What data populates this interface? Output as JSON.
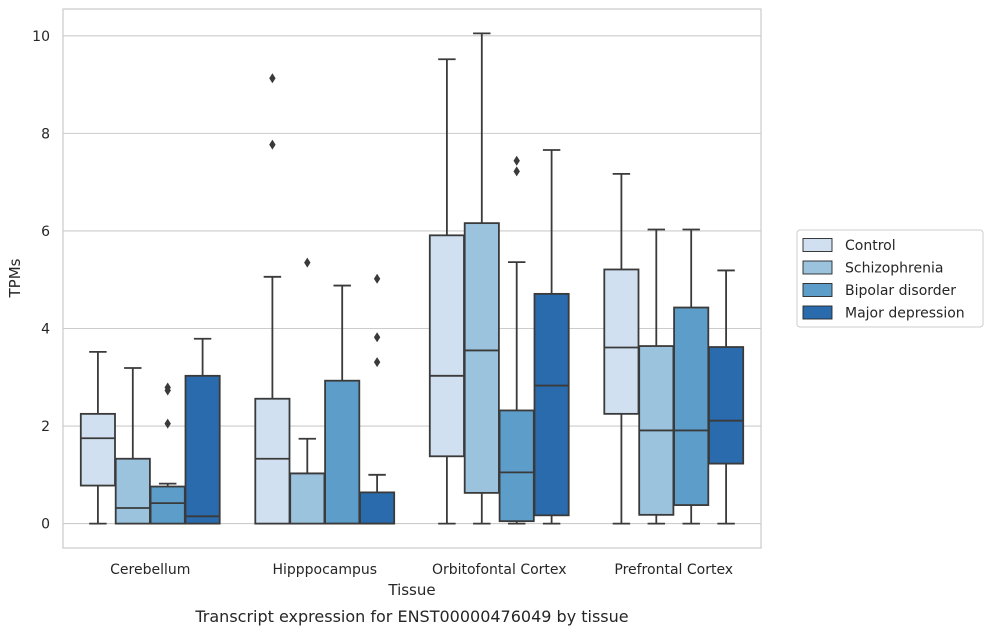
{
  "chart_data": {
    "type": "boxplot",
    "caption": "Transcript expression for ENST00000476049 by tissue",
    "xlabel": "Tissue",
    "ylabel": "TPMs",
    "ylim": [
      -0.5,
      10.55
    ],
    "yticks": [
      0,
      2,
      4,
      6,
      8,
      10
    ],
    "grid": "horizontal",
    "legend_position": "right",
    "categories": [
      "Cerebellum",
      "Hipppocampus",
      "Orbitofontal Cortex",
      "Prefrontal Cortex"
    ],
    "series": [
      {
        "name": "Control",
        "color": "#d0e0f0",
        "boxes": [
          {
            "whisker_low": 0.0,
            "q1": 0.78,
            "median": 1.75,
            "q3": 2.25,
            "whisker_high": 3.52,
            "outliers": []
          },
          {
            "whisker_low": 0.0,
            "q1": 0.0,
            "median": 1.33,
            "q3": 2.56,
            "whisker_high": 5.06,
            "outliers": [
              7.77,
              9.13
            ]
          },
          {
            "whisker_low": 0.0,
            "q1": 1.38,
            "median": 3.03,
            "q3": 5.91,
            "whisker_high": 9.52,
            "outliers": []
          },
          {
            "whisker_low": 0.0,
            "q1": 2.25,
            "median": 3.61,
            "q3": 5.21,
            "whisker_high": 7.17,
            "outliers": []
          }
        ]
      },
      {
        "name": "Schizophrenia",
        "color": "#9cc3de",
        "boxes": [
          {
            "whisker_low": 0.0,
            "q1": 0.0,
            "median": 0.32,
            "q3": 1.33,
            "whisker_high": 3.19,
            "outliers": []
          },
          {
            "whisker_low": 0.0,
            "q1": 0.0,
            "median": 1.03,
            "q3": 1.03,
            "whisker_high": 1.74,
            "outliers": [
              5.35
            ]
          },
          {
            "whisker_low": 0.0,
            "q1": 0.63,
            "median": 3.55,
            "q3": 6.16,
            "whisker_high": 10.05,
            "outliers": []
          },
          {
            "whisker_low": 0.0,
            "q1": 0.18,
            "median": 1.91,
            "q3": 3.64,
            "whisker_high": 6.03,
            "outliers": []
          }
        ]
      },
      {
        "name": "Bipolar disorder",
        "color": "#5c9ec9",
        "boxes": [
          {
            "whisker_low": 0.0,
            "q1": 0.0,
            "median": 0.42,
            "q3": 0.76,
            "whisker_high": 0.82,
            "outliers": [
              2.05,
              2.73,
              2.79
            ]
          },
          {
            "whisker_low": 0.0,
            "q1": 0.0,
            "median": 0.0,
            "q3": 2.93,
            "whisker_high": 4.88,
            "outliers": []
          },
          {
            "whisker_low": 0.0,
            "q1": 0.05,
            "median": 1.05,
            "q3": 2.32,
            "whisker_high": 5.36,
            "outliers": [
              7.22,
              7.44
            ]
          },
          {
            "whisker_low": 0.0,
            "q1": 0.38,
            "median": 1.91,
            "q3": 4.43,
            "whisker_high": 6.03,
            "outliers": []
          }
        ]
      },
      {
        "name": "Major depression",
        "color": "#2a6bad",
        "boxes": [
          {
            "whisker_low": 0.0,
            "q1": 0.0,
            "median": 0.15,
            "q3": 3.03,
            "whisker_high": 3.79,
            "outliers": []
          },
          {
            "whisker_low": 0.0,
            "q1": 0.0,
            "median": 0.0,
            "q3": 0.64,
            "whisker_high": 1.0,
            "outliers": [
              3.31,
              3.82,
              5.02
            ]
          },
          {
            "whisker_low": 0.0,
            "q1": 0.17,
            "median": 2.83,
            "q3": 4.71,
            "whisker_high": 7.66,
            "outliers": []
          },
          {
            "whisker_low": 0.0,
            "q1": 1.23,
            "median": 2.11,
            "q3": 3.62,
            "whisker_high": 5.19,
            "outliers": []
          }
        ]
      }
    ]
  }
}
